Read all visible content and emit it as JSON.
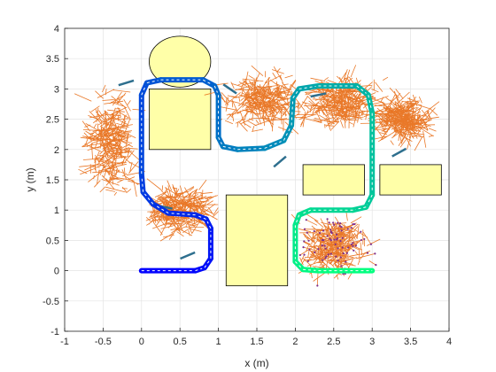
{
  "chart_data": {
    "type": "scatter",
    "title": "",
    "xlabel": "x (m)",
    "ylabel": "y (m)",
    "xlim": [
      -1,
      4
    ],
    "ylim": [
      -1,
      4
    ],
    "xticks": [
      -1,
      -0.5,
      0,
      0.5,
      1,
      1.5,
      2,
      2.5,
      3,
      3.5,
      4
    ],
    "yticks": [
      -1,
      -0.5,
      0,
      0.5,
      1,
      1.5,
      2,
      2.5,
      3,
      3.5,
      4
    ],
    "xtick_labels": [
      "-1",
      "-0.5",
      "0",
      "0.5",
      "1",
      "1.5",
      "2",
      "2.5",
      "3",
      "3.5",
      "4"
    ],
    "ytick_labels": [
      "-1",
      "-0.5",
      "0",
      "0.5",
      "1",
      "1.5",
      "2",
      "2.5",
      "3",
      "3.5",
      "4"
    ],
    "grid": true,
    "colors": {
      "obstacle_fill": "#ffffa8",
      "tree": "#e8711c",
      "tree_node": "#7e2f8e",
      "arrow": "#2e6f8e",
      "path_start": "#0000ff",
      "path_end": "#00ff7f"
    },
    "obstacles": [
      {
        "shape": "ellipse",
        "cx": 0.5,
        "cy": 3.45,
        "rx": 0.4,
        "ry": 0.42
      },
      {
        "shape": "rect",
        "x": 0.1,
        "y": 2.0,
        "w": 0.8,
        "h": 1.0
      },
      {
        "shape": "rect",
        "x": 1.1,
        "y": -0.25,
        "w": 0.8,
        "h": 1.5
      },
      {
        "shape": "rect",
        "x": 2.1,
        "y": 1.25,
        "w": 0.8,
        "h": 0.5
      },
      {
        "shape": "rect",
        "x": 3.1,
        "y": 1.25,
        "w": 0.8,
        "h": 0.5
      }
    ],
    "path": [
      [
        0.0,
        0.0
      ],
      [
        0.7,
        0.0
      ],
      [
        0.82,
        0.05
      ],
      [
        0.9,
        0.2
      ],
      [
        0.9,
        0.7
      ],
      [
        0.84,
        0.85
      ],
      [
        0.7,
        0.92
      ],
      [
        0.35,
        0.95
      ],
      [
        0.15,
        1.1
      ],
      [
        0.02,
        1.3
      ],
      [
        0.0,
        1.6
      ],
      [
        0.0,
        2.9
      ],
      [
        0.07,
        3.1
      ],
      [
        0.25,
        3.15
      ],
      [
        0.8,
        3.15
      ],
      [
        0.95,
        3.05
      ],
      [
        1.0,
        2.9
      ],
      [
        1.0,
        2.2
      ],
      [
        1.06,
        2.05
      ],
      [
        1.25,
        2.0
      ],
      [
        1.6,
        2.02
      ],
      [
        1.85,
        2.15
      ],
      [
        1.95,
        2.4
      ],
      [
        1.97,
        2.85
      ],
      [
        2.05,
        3.0
      ],
      [
        2.3,
        3.05
      ],
      [
        2.8,
        3.05
      ],
      [
        2.95,
        2.9
      ],
      [
        3.0,
        2.6
      ],
      [
        3.0,
        1.25
      ],
      [
        2.92,
        1.05
      ],
      [
        2.75,
        1.0
      ],
      [
        2.2,
        1.0
      ],
      [
        2.05,
        0.92
      ],
      [
        2.0,
        0.75
      ],
      [
        2.0,
        0.15
      ],
      [
        2.1,
        0.02
      ],
      [
        2.3,
        0.0
      ],
      [
        3.0,
        0.0
      ]
    ],
    "tree_regions": [
      {
        "center": [
          -0.4,
          2.1
        ],
        "spread": [
          0.3,
          0.85
        ]
      },
      {
        "center": [
          0.5,
          1.0
        ],
        "spread": [
          0.4,
          0.35
        ]
      },
      {
        "center": [
          1.6,
          2.8
        ],
        "spread": [
          0.55,
          0.45
        ]
      },
      {
        "center": [
          2.6,
          2.8
        ],
        "spread": [
          0.5,
          0.4
        ]
      },
      {
        "center": [
          3.4,
          2.5
        ],
        "spread": [
          0.35,
          0.35
        ]
      },
      {
        "center": [
          2.5,
          0.4
        ],
        "spread": [
          0.4,
          0.45
        ]
      }
    ]
  }
}
